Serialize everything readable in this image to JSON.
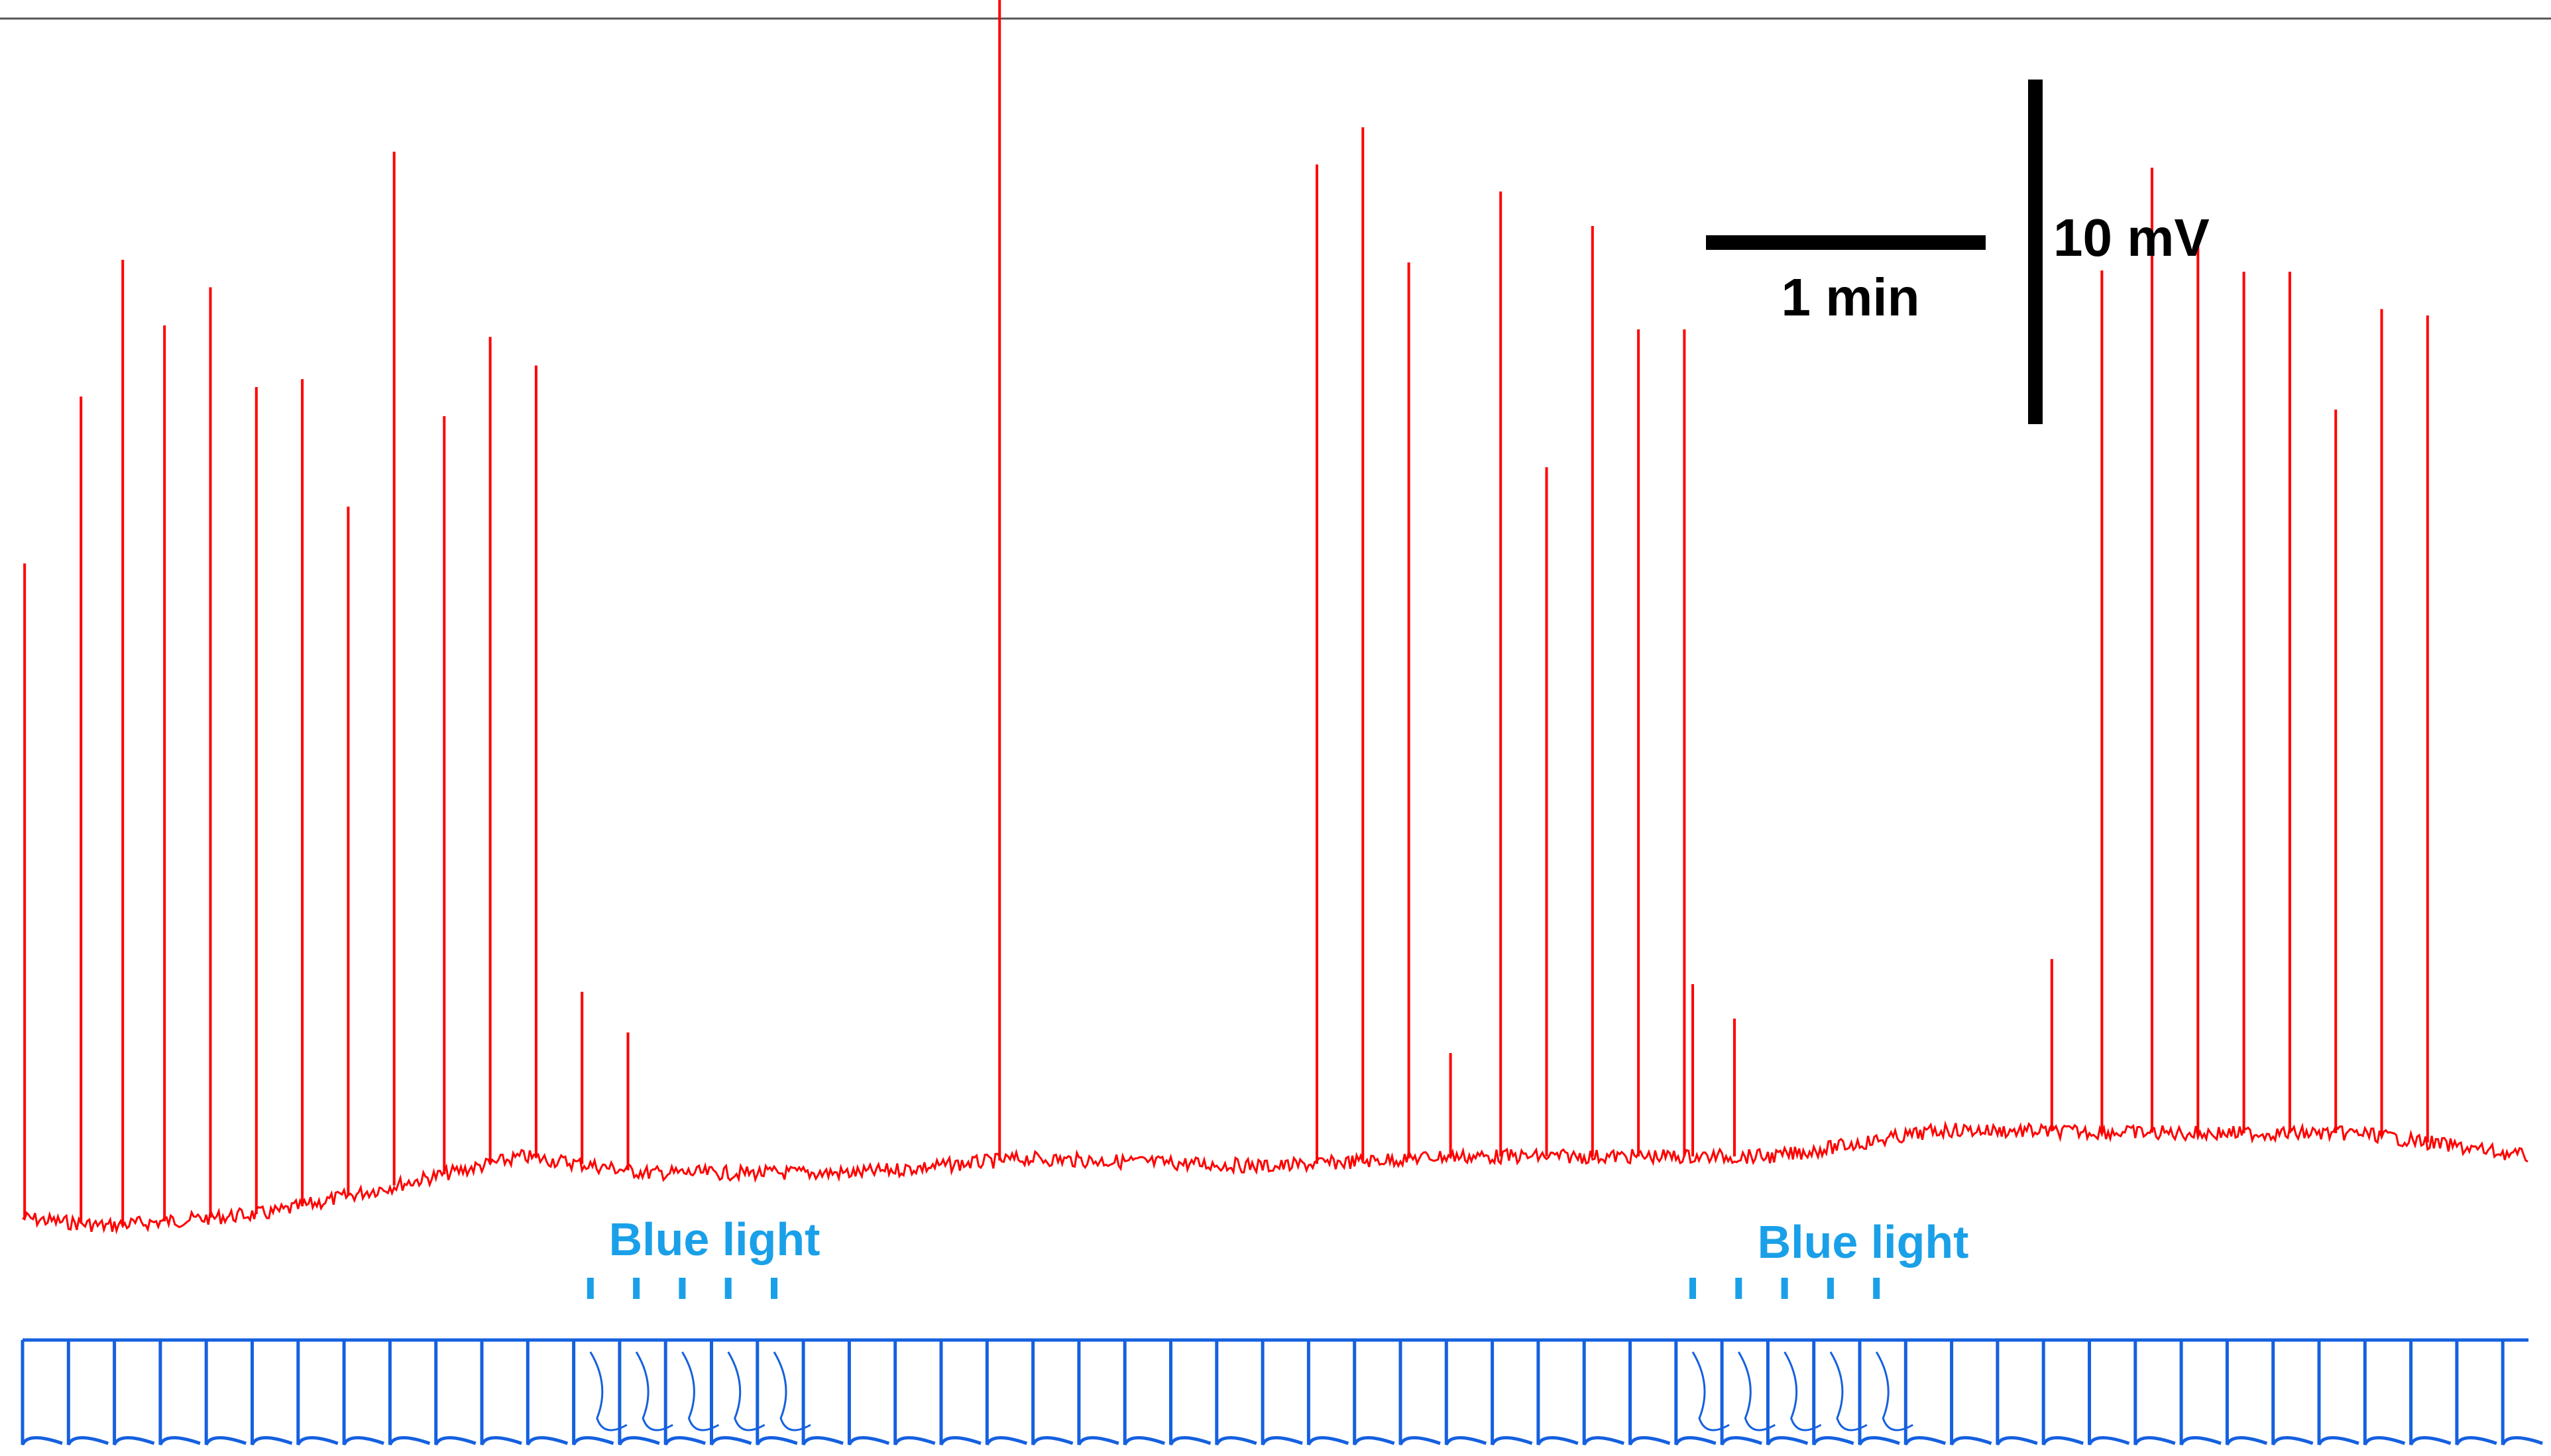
{
  "chart_data": {
    "type": "line",
    "title": "",
    "xlabel": "",
    "ylabel": "",
    "grid": false,
    "scale_bars": {
      "time_label": "1 min",
      "voltage_label": "10 mV"
    },
    "stimulus_label": "Blue light",
    "series": [
      {
        "color": "#ff0000",
        "spike_times_s": [
          0.5,
          14,
          24,
          34,
          45,
          56,
          67,
          78,
          89,
          101,
          112,
          123
        ],
        "spike_amplitudes_mV": [
          19,
          24,
          28,
          26,
          27,
          24,
          24,
          20,
          30,
          22,
          24,
          23
        ],
        "small_events_s": [
          134,
          145
        ],
        "small_events_mV": [
          5,
          4
        ],
        "large_spike": {
          "time_s": 234,
          "amplitude_mV": 42
        }
      },
      {
        "color": "#ff0000",
        "spike_times_s": [
          310,
          321,
          332,
          354,
          365,
          376,
          387,
          398
        ],
        "spike_amplitudes_mV": [
          29,
          30,
          26,
          28,
          20,
          27,
          24,
          24
        ],
        "small_events_s": [
          342,
          400,
          410
        ],
        "small_events_mV": [
          3,
          5,
          4
        ]
      },
      {
        "color": "#ff0000",
        "spike_times_s": [
          498,
          510,
          521,
          532,
          543,
          554,
          565,
          576
        ],
        "spike_amplitudes_mV": [
          25,
          28,
          26,
          25,
          25,
          21,
          24,
          24
        ],
        "small_events_s": [
          486
        ],
        "small_events_mV": [
          5
        ]
      },
      {
        "color": "#1560e0",
        "pulse_interval_s": 11,
        "stimulus_groups_s": [
          [
            136,
            147,
            158,
            169,
            180
          ],
          [
            400,
            411,
            422,
            433,
            444
          ]
        ]
      }
    ],
    "stimulus_color": "#1aa0e8"
  }
}
